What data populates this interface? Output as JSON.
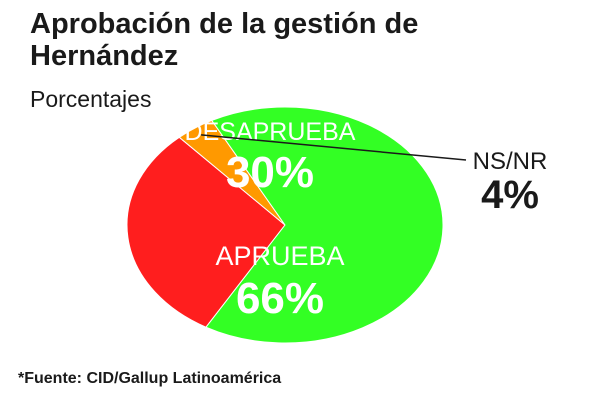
{
  "header": {
    "title": "Aprobación de la gestión de Hernández",
    "subtitle": "Porcentajes"
  },
  "footer": {
    "source": "*Fuente: CID/Gallup Latinoamérica"
  },
  "chart_data": {
    "type": "pie",
    "title": "Aprobación de la gestión de Hernández",
    "subtitle": "Porcentajes",
    "slices": [
      {
        "label": "DESAPRUEBA",
        "value": 30,
        "value_label": "30%",
        "color": "#ff1e1e"
      },
      {
        "label": "NS/NR",
        "value": 4,
        "value_label": "4%",
        "color": "#ff9900"
      },
      {
        "label": "APRUEBA",
        "value": 66,
        "value_label": "66%",
        "color": "#33ff24"
      }
    ],
    "legend": "none",
    "label_colors": {
      "inside": "#ffffff",
      "outside": "#1a1a1a"
    }
  }
}
